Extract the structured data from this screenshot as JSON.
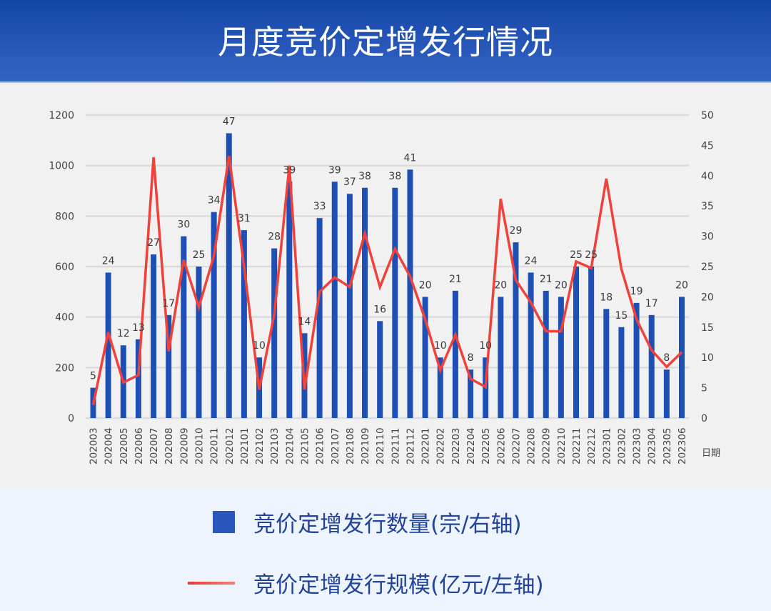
{
  "header": {
    "title": "月度竞价定增发行情况"
  },
  "legend": {
    "bar_label": "竞价定增发行数量(宗/右轴)",
    "line_label": "竞价定增发行规模(亿元/左轴)"
  },
  "colors": {
    "bar": "#1e4fb5",
    "line": "#f0413a",
    "grid": "#dcdcdc",
    "axis_text": "#444444",
    "label_text": "#3a3a3a",
    "plot_bg": "#f1f1f1",
    "legend_bg": "#eef4fd",
    "header_bg": "#2050b4"
  },
  "chart_data": {
    "type": "bar+line",
    "title": "月度竞价定增发行情况",
    "xlabel": "日期",
    "ylabel_left": "竞价定增发行规模(亿元)",
    "ylabel_right": "竞价定增发行数量(宗)",
    "ylim_left": [
      0,
      1200
    ],
    "ylim_right": [
      0,
      50
    ],
    "yticks_left": [
      0,
      200,
      400,
      600,
      800,
      1000,
      1200
    ],
    "yticks_right": [
      0,
      5,
      10,
      15,
      20,
      25,
      30,
      35,
      40,
      45,
      50
    ],
    "grid": true,
    "legend_position": "bottom",
    "categories": [
      "202003",
      "202004",
      "202005",
      "202006",
      "202007",
      "202008",
      "202009",
      "202010",
      "202011",
      "202012",
      "202101",
      "202102",
      "202103",
      "202104",
      "202105",
      "202106",
      "202107",
      "202108",
      "202109",
      "202110",
      "202111",
      "202112",
      "202201",
      "202202",
      "202203",
      "202204",
      "202205",
      "202206",
      "202207",
      "202208",
      "202209",
      "202210",
      "202211",
      "202212",
      "202301",
      "202302",
      "202303",
      "202304",
      "202305",
      "202306"
    ],
    "series": [
      {
        "name": "竞价定增发行数量(宗/右轴)",
        "type": "bar",
        "axis": "right",
        "values": [
          5,
          24,
          12,
          13,
          27,
          17,
          30,
          25,
          34,
          47,
          31,
          10,
          28,
          39,
          14,
          33,
          39,
          37,
          38,
          16,
          38,
          41,
          20,
          10,
          21,
          8,
          10,
          20,
          29,
          24,
          21,
          20,
          25,
          25,
          18,
          15,
          19,
          17,
          8,
          20
        ]
      },
      {
        "name": "竞价定增发行规模(亿元/左轴)",
        "type": "line",
        "axis": "left",
        "values": [
          52,
          340,
          141,
          170,
          1033,
          264,
          627,
          439,
          642,
          1038,
          600,
          113,
          410,
          1000,
          113,
          500,
          557,
          519,
          731,
          519,
          670,
          561,
          391,
          189,
          330,
          156,
          123,
          868,
          547,
          458,
          344,
          344,
          620,
          594,
          948,
          590,
          391,
          269,
          203,
          261
        ]
      }
    ]
  }
}
